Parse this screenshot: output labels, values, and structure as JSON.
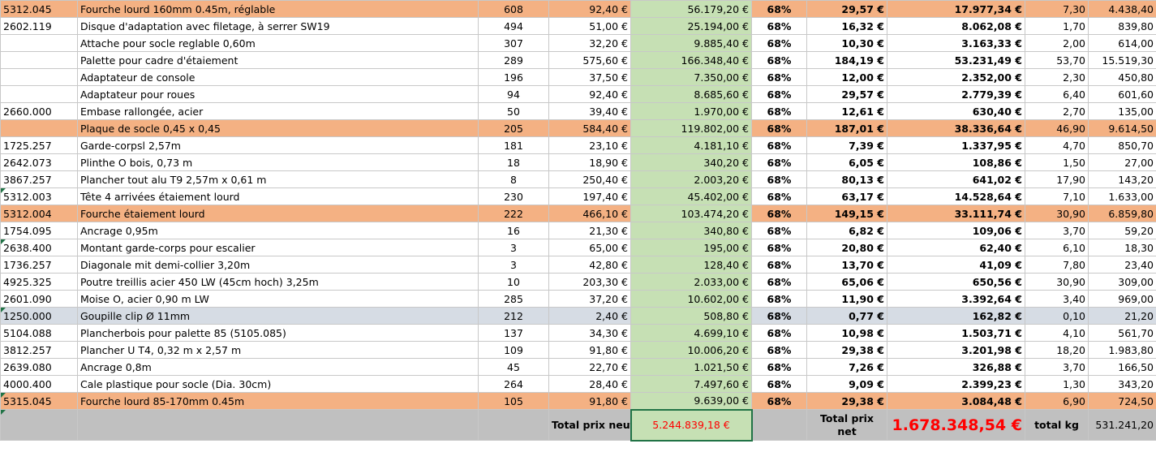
{
  "rows": [
    {
      "code": "5312.045",
      "desc": "Fourche lourd 160mm 0.45m, réglable",
      "qty": "608",
      "unit": "92,40 €",
      "tot": "56.179,20 €",
      "pct": "68%",
      "net": "29,57 €",
      "nettot": "17.977,34 €",
      "kg": "7,30",
      "kgtot": "4.438,40",
      "style": "orange",
      "cm": false
    },
    {
      "code": "2602.119",
      "desc": "Disque d'adaptation avec filetage, à serrer SW19",
      "qty": "494",
      "unit": "51,00 €",
      "tot": "25.194,00 €",
      "pct": "68%",
      "net": "16,32 €",
      "nettot": "8.062,08 €",
      "kg": "1,70",
      "kgtot": "839,80",
      "style": "",
      "cm": false
    },
    {
      "code": "",
      "desc": "Attache pour socle reglable  0,60m",
      "qty": "307",
      "unit": "32,20 €",
      "tot": "9.885,40 €",
      "pct": "68%",
      "net": "10,30 €",
      "nettot": "3.163,33 €",
      "kg": "2,00",
      "kgtot": "614,00",
      "style": "",
      "cm": false
    },
    {
      "code": "",
      "desc": "Palette pour cadre d'étaiement",
      "qty": "289",
      "unit": "575,60 €",
      "tot": "166.348,40 €",
      "pct": "68%",
      "net": "184,19 €",
      "nettot": "53.231,49 €",
      "kg": "53,70",
      "kgtot": "15.519,30",
      "style": "",
      "cm": false
    },
    {
      "code": "",
      "desc": "Adaptateur de console",
      "qty": "196",
      "unit": "37,50 €",
      "tot": "7.350,00 €",
      "pct": "68%",
      "net": "12,00 €",
      "nettot": "2.352,00 €",
      "kg": "2,30",
      "kgtot": "450,80",
      "style": "",
      "cm": false
    },
    {
      "code": "",
      "desc": "Adaptateur pour roues",
      "qty": "94",
      "unit": "92,40 €",
      "tot": "8.685,60 €",
      "pct": "68%",
      "net": "29,57 €",
      "nettot": "2.779,39 €",
      "kg": "6,40",
      "kgtot": "601,60",
      "style": "",
      "cm": false
    },
    {
      "code": "2660.000",
      "desc": "Embase rallongée, acier",
      "qty": "50",
      "unit": "39,40 €",
      "tot": "1.970,00 €",
      "pct": "68%",
      "net": "12,61 €",
      "nettot": "630,40 €",
      "kg": "2,70",
      "kgtot": "135,00",
      "style": "",
      "cm": false
    },
    {
      "code": "",
      "desc": "Plaque de socle 0,45 x 0,45",
      "qty": "205",
      "unit": "584,40 €",
      "tot": "119.802,00 €",
      "pct": "68%",
      "net": "187,01 €",
      "nettot": "38.336,64 €",
      "kg": "46,90",
      "kgtot": "9.614,50",
      "style": "orange",
      "cm": false
    },
    {
      "code": "1725.257",
      "desc": "Garde-corpsl 2,57m",
      "qty": "181",
      "unit": "23,10 €",
      "tot": "4.181,10 €",
      "pct": "68%",
      "net": "7,39 €",
      "nettot": "1.337,95 €",
      "kg": "4,70",
      "kgtot": "850,70",
      "style": "",
      "cm": false
    },
    {
      "code": "2642.073",
      "desc": "Plinthe O bois, 0,73 m",
      "qty": "18",
      "unit": "18,90 €",
      "tot": "340,20 €",
      "pct": "68%",
      "net": "6,05 €",
      "nettot": "108,86 €",
      "kg": "1,50",
      "kgtot": "27,00",
      "style": "",
      "cm": false
    },
    {
      "code": "3867.257",
      "desc": "Plancher tout alu  T9 2,57m x 0,61 m",
      "qty": "8",
      "unit": "250,40 €",
      "tot": "2.003,20 €",
      "pct": "68%",
      "net": "80,13 €",
      "nettot": "641,02 €",
      "kg": "17,90",
      "kgtot": "143,20",
      "style": "",
      "cm": false
    },
    {
      "code": "5312.003",
      "desc": "Tête 4 arrivées étaiement lourd",
      "qty": "230",
      "unit": "197,40 €",
      "tot": "45.402,00 €",
      "pct": "68%",
      "net": "63,17 €",
      "nettot": "14.528,64 €",
      "kg": "7,10",
      "kgtot": "1.633,00",
      "style": "",
      "cm": true
    },
    {
      "code": "5312.004",
      "desc": "Fourche étaiement lourd",
      "qty": "222",
      "unit": "466,10 €",
      "tot": "103.474,20 €",
      "pct": "68%",
      "net": "149,15 €",
      "nettot": "33.111,74 €",
      "kg": "30,90",
      "kgtot": "6.859,80",
      "style": "orange",
      "cm": false
    },
    {
      "code": "1754.095",
      "desc": "Ancrage 0,95m",
      "qty": "16",
      "unit": "21,30 €",
      "tot": "340,80 €",
      "pct": "68%",
      "net": "6,82 €",
      "nettot": "109,06 €",
      "kg": "3,70",
      "kgtot": "59,20",
      "style": "",
      "cm": false
    },
    {
      "code": "2638.400",
      "desc": "Montant garde-corps pour escalier",
      "qty": "3",
      "unit": "65,00 €",
      "tot": "195,00 €",
      "pct": "68%",
      "net": "20,80 €",
      "nettot": "62,40 €",
      "kg": "6,10",
      "kgtot": "18,30",
      "style": "",
      "cm": true
    },
    {
      "code": "1736.257",
      "desc": "Diagonale mit demi-collier 3,20m",
      "qty": "3",
      "unit": "42,80 €",
      "tot": "128,40 €",
      "pct": "68%",
      "net": "13,70 €",
      "nettot": "41,09 €",
      "kg": "7,80",
      "kgtot": "23,40",
      "style": "",
      "cm": false
    },
    {
      "code": "4925.325",
      "desc": "Poutre treillis acier 450 LW (45cm hoch) 3,25m",
      "qty": "10",
      "unit": "203,30 €",
      "tot": "2.033,00 €",
      "pct": "68%",
      "net": "65,06 €",
      "nettot": "650,56 €",
      "kg": "30,90",
      "kgtot": "309,00",
      "style": "",
      "cm": false
    },
    {
      "code": "2601.090",
      "desc": "Moise O, acier 0,90 m LW",
      "qty": "285",
      "unit": "37,20 €",
      "tot": "10.602,00 €",
      "pct": "68%",
      "net": "11,90 €",
      "nettot": "3.392,64 €",
      "kg": "3,40",
      "kgtot": "969,00",
      "style": "",
      "cm": false
    },
    {
      "code": "1250.000",
      "desc": "Goupille clip Ø 11mm",
      "qty": "212",
      "unit": "2,40 €",
      "tot": "508,80 €",
      "pct": "68%",
      "net": "0,77 €",
      "nettot": "162,82 €",
      "kg": "0,10",
      "kgtot": "21,20",
      "style": "grey",
      "cm": true
    },
    {
      "code": "5104.088",
      "desc": "Plancherbois pour palette 85 (5105.085)",
      "qty": "137",
      "unit": "34,30 €",
      "tot": "4.699,10 €",
      "pct": "68%",
      "net": "10,98 €",
      "nettot": "1.503,71 €",
      "kg": "4,10",
      "kgtot": "561,70",
      "style": "",
      "cm": false
    },
    {
      "code": "3812.257",
      "desc": "Plancher U T4, 0,32 m x 2,57 m",
      "qty": "109",
      "unit": "91,80 €",
      "tot": "10.006,20 €",
      "pct": "68%",
      "net": "29,38 €",
      "nettot": "3.201,98 €",
      "kg": "18,20",
      "kgtot": "1.983,80",
      "style": "",
      "cm": false
    },
    {
      "code": "2639.080",
      "desc": "Ancrage 0,8m",
      "qty": "45",
      "unit": "22,70 €",
      "tot": "1.021,50 €",
      "pct": "68%",
      "net": "7,26 €",
      "nettot": "326,88 €",
      "kg": "3,70",
      "kgtot": "166,50",
      "style": "",
      "cm": false
    },
    {
      "code": "4000.400",
      "desc": "Cale plastique pour socle (Dia. 30cm)",
      "qty": "264",
      "unit": "28,40 €",
      "tot": "7.497,60 €",
      "pct": "68%",
      "net": "9,09 €",
      "nettot": "2.399,23 €",
      "kg": "1,30",
      "kgtot": "343,20",
      "style": "",
      "cm": false
    },
    {
      "code": "5315.045",
      "desc": "Fourche lourd 85-170mm 0.45m",
      "qty": "105",
      "unit": "91,80 €",
      "tot": "9.639,00 €",
      "pct": "68%",
      "net": "29,38 €",
      "nettot": "3.084,48 €",
      "kg": "6,90",
      "kgtot": "724,50",
      "style": "orange",
      "cm": true
    }
  ],
  "totals": {
    "neuf_label": "Total prix neuf",
    "neuf_value": "5.244.839,18 €",
    "net_label": "Total prix net",
    "net_value": "1.678.348,54 €",
    "kg_label": "total kg",
    "kg_value": "531.241,20"
  },
  "colors": {
    "orange_row": "#f4b183",
    "green_col": "#c6e0b4",
    "grey_row": "#d6dce4",
    "total_row": "#c0c0c0",
    "highlight_red": "#ff0000",
    "selection_border": "#217346"
  }
}
